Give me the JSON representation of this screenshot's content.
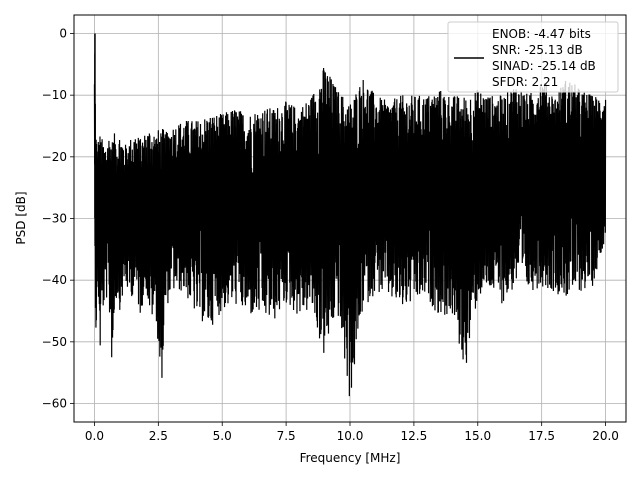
{
  "chart_data": {
    "type": "line",
    "xlabel": "Frequency [MHz]",
    "ylabel": "PSD [dB]",
    "xlim": [
      -0.8,
      20.8
    ],
    "ylim": [
      -63,
      3
    ],
    "xticks": [
      0.0,
      2.5,
      5.0,
      7.5,
      10.0,
      12.5,
      15.0,
      17.5,
      20.0
    ],
    "xtick_labels": [
      "0.0",
      "2.5",
      "5.0",
      "7.5",
      "10.0",
      "12.5",
      "15.0",
      "17.5",
      "20.0"
    ],
    "yticks": [
      0,
      -10,
      -20,
      -30,
      -40,
      -50,
      -60
    ],
    "ytick_labels": [
      "0",
      "−10",
      "−20",
      "−30",
      "−40",
      "−50",
      "−60"
    ],
    "grid": true,
    "legend_position": "top-right",
    "series_color": "#000000",
    "legend": {
      "lines": [
        "ENOB: -4.47 bits",
        "SNR: -25.13 dB",
        "SINAD: -25.14 dB",
        "SFDR: 2.21"
      ]
    },
    "series": [
      {
        "x": [
          0.0,
          0.02,
          0.04,
          0.06,
          0.08,
          0.1,
          0.15,
          0.2,
          0.3,
          0.4,
          0.5,
          0.6,
          0.7,
          0.8,
          0.9,
          1.0,
          1.2,
          1.4,
          1.6,
          1.8,
          2.0,
          2.2,
          2.4,
          2.6,
          2.8,
          3.0,
          3.5,
          4.0,
          4.5,
          5.0,
          5.5,
          6.0,
          6.5,
          7.0,
          7.5,
          8.0,
          8.5,
          9.0,
          9.5,
          10.0,
          10.5,
          11.0,
          11.5,
          12.0,
          12.5,
          13.0,
          13.5,
          14.0,
          14.5,
          15.0,
          15.5,
          16.0,
          16.5,
          17.0,
          17.5,
          18.0,
          18.5,
          19.0,
          19.5,
          20.0
        ],
        "upper": [
          -7,
          0,
          -14,
          -15,
          -16,
          -18,
          -17,
          -16,
          -17,
          -18,
          -17,
          -16,
          -17,
          -16,
          -17,
          -16,
          -18,
          -17,
          -16,
          -17,
          -16,
          -15,
          -16,
          -15,
          -16,
          -15,
          -14,
          -14,
          -13,
          -13,
          -12,
          -13,
          -12,
          -12,
          -11,
          -12,
          -10,
          -5,
          -9,
          -11,
          -7,
          -10,
          -11,
          -10,
          -10,
          -10,
          -9,
          -10,
          -10,
          -9,
          -10,
          -10,
          -8,
          -10,
          -7,
          -10,
          -7,
          -9,
          -10,
          -10
        ],
        "lower": [
          -25,
          -30,
          -48,
          -49,
          -48,
          -47,
          -42,
          -54,
          -46,
          -44,
          -43,
          -47,
          -55,
          -44,
          -43,
          -45,
          -41,
          -43,
          -42,
          -46,
          -41,
          -47,
          -45,
          -59,
          -45,
          -42,
          -42,
          -46,
          -48,
          -45,
          -44,
          -46,
          -46,
          -47,
          -44,
          -46,
          -45,
          -53,
          -45,
          -60,
          -45,
          -42,
          -43,
          -45,
          -44,
          -43,
          -46,
          -46,
          -55,
          -43,
          -42,
          -44,
          -41,
          -42,
          -41,
          -42,
          -43,
          -42,
          -41,
          -33
        ]
      }
    ]
  }
}
